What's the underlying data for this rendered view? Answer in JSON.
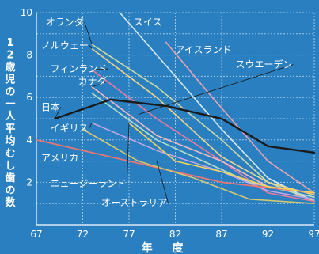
{
  "chart_data": {
    "type": "line",
    "xlabel": "年 度",
    "ylabel": "12歳児の一人平均むし歯の数",
    "xlim": [
      67,
      97
    ],
    "ylim": [
      0,
      10
    ],
    "xticks": [
      67,
      72,
      77,
      82,
      87,
      92,
      97
    ],
    "xtick_labels": [
      "67",
      "72",
      "77",
      "82",
      "87",
      "92",
      "97"
    ],
    "yticks": [
      2,
      4,
      6,
      8,
      10
    ],
    "ytick_labels": [
      "2",
      "4",
      "6",
      "8",
      "10"
    ],
    "grid": true,
    "series": [
      {
        "name": "日本",
        "color": "#1a1a1a",
        "width": 2.4,
        "points": [
          [
            69,
            5.0
          ],
          [
            75,
            5.9
          ],
          [
            81,
            5.6
          ],
          [
            87,
            5.0
          ],
          [
            92,
            3.7
          ],
          [
            97,
            3.4
          ]
        ]
      },
      {
        "name": "スイス",
        "color": "#d7e9ef",
        "width": 1.6,
        "points": [
          [
            76,
            10.0
          ],
          [
            82,
            7.0
          ],
          [
            87,
            4.5
          ],
          [
            92,
            2.2
          ],
          [
            97,
            1.1
          ]
        ]
      },
      {
        "name": "オランダ",
        "color": "#c9d9a6",
        "width": 1.6,
        "points": [
          [
            73,
            8.5
          ],
          [
            80,
            6.5
          ],
          [
            87,
            4.0
          ],
          [
            92,
            2.0
          ],
          [
            97,
            1.1
          ]
        ]
      },
      {
        "name": "ノルウェー",
        "color": "#f2d48a",
        "width": 1.6,
        "points": [
          [
            73,
            8.3
          ],
          [
            80,
            6.0
          ],
          [
            87,
            3.2
          ],
          [
            92,
            2.0
          ],
          [
            97,
            1.4
          ]
        ]
      },
      {
        "name": "アイスランド",
        "color": "#e9a4b4",
        "width": 1.6,
        "points": [
          [
            81,
            8.6
          ],
          [
            86,
            6.0
          ],
          [
            92,
            3.0
          ],
          [
            97,
            1.5
          ]
        ]
      },
      {
        "name": "フィンランド",
        "color": "#e77aa0",
        "width": 1.6,
        "points": [
          [
            73,
            7.3
          ],
          [
            80,
            5.0
          ],
          [
            87,
            3.0
          ],
          [
            92,
            1.5
          ],
          [
            97,
            1.1
          ]
        ]
      },
      {
        "name": "カナダ",
        "color": "#f3b8c0",
        "width": 1.6,
        "points": [
          [
            73,
            6.5
          ],
          [
            80,
            4.2
          ],
          [
            87,
            3.0
          ],
          [
            92,
            1.8
          ],
          [
            97,
            1.5
          ]
        ]
      },
      {
        "name": "スウェーデン",
        "color": "#b8dcc6",
        "width": 1.6,
        "points": [
          [
            73,
            6.2
          ],
          [
            80,
            4.0
          ],
          [
            85,
            3.0
          ],
          [
            90,
            2.0
          ],
          [
            97,
            1.3
          ]
        ]
      },
      {
        "name": "イギリス",
        "color": "#c3a6e6",
        "width": 1.6,
        "points": [
          [
            73,
            4.8
          ],
          [
            80,
            3.5
          ],
          [
            87,
            2.5
          ],
          [
            92,
            1.6
          ],
          [
            97,
            1.2
          ]
        ]
      },
      {
        "name": "アメリカ",
        "color": "#ea7575",
        "width": 1.8,
        "points": [
          [
            67,
            4.0
          ],
          [
            77,
            3.0
          ],
          [
            87,
            2.0
          ],
          [
            97,
            1.5
          ]
        ]
      },
      {
        "name": "ニュージーランド",
        "color": "#f7d35a",
        "width": 1.6,
        "points": [
          [
            77,
            4.8
          ],
          [
            82,
            3.0
          ],
          [
            87,
            2.5
          ],
          [
            92,
            1.8
          ],
          [
            97,
            1.5
          ]
        ]
      },
      {
        "name": "オーストラリア",
        "color": "#d7c76f",
        "width": 1.6,
        "points": [
          [
            72,
            4.5
          ],
          [
            78,
            3.0
          ],
          [
            84,
            2.2
          ],
          [
            90,
            1.2
          ],
          [
            97,
            1.0
          ]
        ]
      }
    ],
    "annotations": [
      {
        "text": "オランダ",
        "series": "オランダ",
        "lx": 68,
        "ly": 9.4,
        "tx": 73,
        "ty": 8.5
      },
      {
        "text": "スイス",
        "series": "スイス",
        "lx": 77.5,
        "ly": 9.4
      },
      {
        "text": "ノルウェー",
        "series": "ノルウェー",
        "lx": 67.5,
        "ly": 8.3,
        "tx": 73,
        "ty": 8.3
      },
      {
        "text": "アイスランド",
        "series": "アイスランド",
        "lx": 82,
        "ly": 8.1
      },
      {
        "text": "フィンランド",
        "series": "フィンランド",
        "lx": 68.5,
        "ly": 7.2,
        "tx": 73,
        "ty": 7.3
      },
      {
        "text": "スウエーデン",
        "series": "スウェーデン",
        "lx": 88.5,
        "ly": 7.4,
        "tx": 78,
        "ty": 5.2
      },
      {
        "text": "カナダ",
        "series": "カナダ",
        "lx": 71.5,
        "ly": 6.6,
        "tx": 73,
        "ty": 6.5
      },
      {
        "text": "日本",
        "series": "日本",
        "lx": 67.5,
        "ly": 5.4,
        "tx": 69,
        "ty": 5.0
      },
      {
        "text": "イギリス",
        "series": "イギリス",
        "lx": 68.5,
        "ly": 4.4,
        "tx": 73,
        "ty": 4.8
      },
      {
        "text": "アメリカ",
        "series": "アメリカ",
        "lx": 67.5,
        "ly": 3.0
      },
      {
        "text": "ニュージーランド",
        "series": "ニュージーランド",
        "lx": 68.5,
        "ly": 1.8,
        "tx": 77,
        "ty": 4.8
      },
      {
        "text": "オーストラリア",
        "series": "オーストラリア",
        "lx": 74,
        "ly": 0.9,
        "tx": 80,
        "ty": 3.0
      }
    ]
  }
}
